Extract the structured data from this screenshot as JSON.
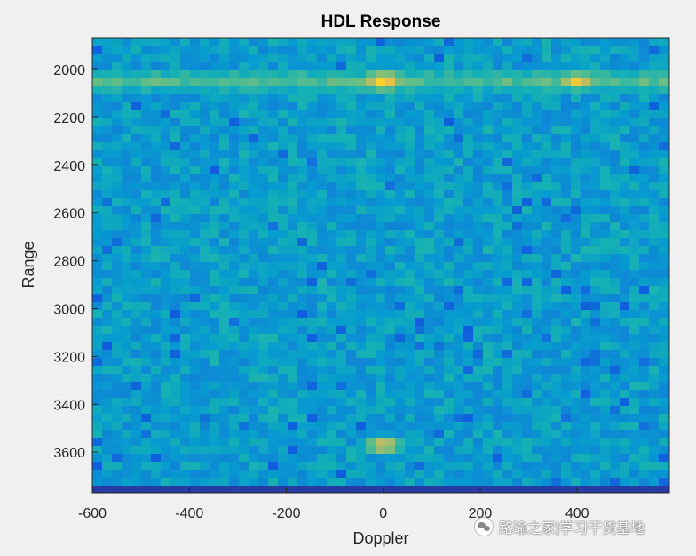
{
  "chart_data": {
    "type": "heatmap",
    "title": "HDL Response",
    "xlabel": "Doppler",
    "ylabel": "Range",
    "xlim": [
      -600,
      590
    ],
    "ylim": [
      1870,
      3770
    ],
    "y_reversed": true,
    "x_ticks": [
      -600,
      -400,
      -200,
      0,
      200,
      400
    ],
    "x_tick_labels": [
      "-600",
      "-400",
      "-200",
      "0",
      "200",
      "400"
    ],
    "y_ticks": [
      2000,
      2200,
      2400,
      2600,
      2800,
      3000,
      3200,
      3400,
      3600
    ],
    "y_tick_labels": [
      "2000",
      "2200",
      "2400",
      "2600",
      "2800",
      "3000",
      "3200",
      "3400",
      "3600"
    ],
    "colormap": "parula",
    "background_level": 0.45,
    "horizontal_band": {
      "range": 2050,
      "level": 0.65
    },
    "bottom_strip": {
      "range": 3760,
      "level": 0.05
    },
    "peaks": [
      {
        "doppler": 0,
        "range": 2050,
        "level": 1.0
      },
      {
        "doppler": 400,
        "range": 2050,
        "level": 0.95
      },
      {
        "doppler": 0,
        "range": 3570,
        "level": 0.92
      }
    ],
    "grid": false
  },
  "watermark": {
    "text": "路瑜之家|学习干货基地",
    "icon": "wechat-icon"
  },
  "colors": {
    "figure_bg": "#f0f0f0",
    "axes_border": "#262626"
  }
}
